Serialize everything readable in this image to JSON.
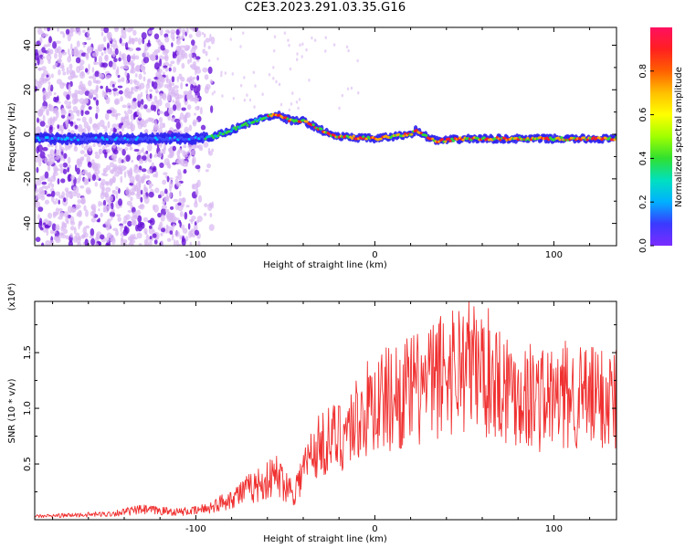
{
  "title": "C2E3.2023.291.03.35.G16",
  "colors": {
    "snr_line": "#f03030",
    "scatter_light": "#d8b8f2",
    "scatter_dark": "#6a14d8",
    "trace_core": "#1a6bff"
  },
  "chart_data": [
    {
      "type": "heatmap",
      "title": "C2E3.2023.291.03.35.G16",
      "xlabel": "Height of straight line (km)",
      "ylabel": "Frequency (Hz)",
      "xlim": [
        -190,
        135
      ],
      "ylim": [
        -50,
        48
      ],
      "x_ticks": [
        -100,
        0,
        100
      ],
      "y_ticks": [
        -40,
        -20,
        0,
        20,
        40
      ],
      "colorbar": {
        "label": "Normalized spectral amplitude",
        "range": [
          0.0,
          1.0
        ],
        "ticks": [
          "0.0",
          "0.2",
          "0.4",
          "0.6",
          "0.8"
        ],
        "colormap": [
          "#7b2cff",
          "#3a3aff",
          "#00b0ff",
          "#00e0c0",
          "#30e030",
          "#a0ff00",
          "#ffff00",
          "#ffc000",
          "#ff6000",
          "#ff2020",
          "#ff1060"
        ]
      },
      "ridge": {
        "x": [
          -180,
          -150,
          -120,
          -100,
          -90,
          -80,
          -70,
          -60,
          -55,
          -50,
          -45,
          -40,
          -35,
          -30,
          -25,
          -20,
          -10,
          0,
          10,
          20,
          23,
          26,
          35,
          50,
          80,
          110,
          135
        ],
        "freq": [
          -2,
          -2,
          -2,
          -2,
          -1,
          2,
          5,
          8,
          9,
          7,
          6,
          6,
          4,
          2,
          0,
          -1,
          -1.5,
          -2,
          -1,
          0,
          2,
          0,
          -3,
          -2,
          -2,
          -2,
          -2
        ]
      }
    },
    {
      "type": "line",
      "title": "",
      "xlabel": "Height of straight line (km)",
      "ylabel": "SNR (10 * v/v)",
      "y_multiplier": "(x10⁴)",
      "xlim": [
        -190,
        135
      ],
      "ylim": [
        0,
        19600
      ],
      "x_ticks": [
        -100,
        0,
        100
      ],
      "y_ticks": [
        0.5,
        1.0,
        1.5
      ],
      "series": [
        {
          "x": [
            -190,
            -150,
            -130,
            -110,
            -100,
            -90,
            -80,
            -70,
            -60,
            -55,
            -50,
            -45,
            -40,
            -35,
            -30,
            -20,
            -10,
            0,
            10,
            20,
            30,
            40,
            50,
            60,
            70,
            80,
            90,
            100,
            110,
            120,
            135
          ],
          "values": [
            300,
            500,
            900,
            700,
            800,
            1200,
            2000,
            2800,
            3500,
            4000,
            3200,
            2500,
            4500,
            6000,
            6800,
            7500,
            9000,
            10500,
            11000,
            11500,
            12000,
            13500,
            14000,
            13500,
            12500,
            11500,
            11000,
            10800,
            11200,
            10800,
            11000
          ]
        }
      ]
    }
  ]
}
